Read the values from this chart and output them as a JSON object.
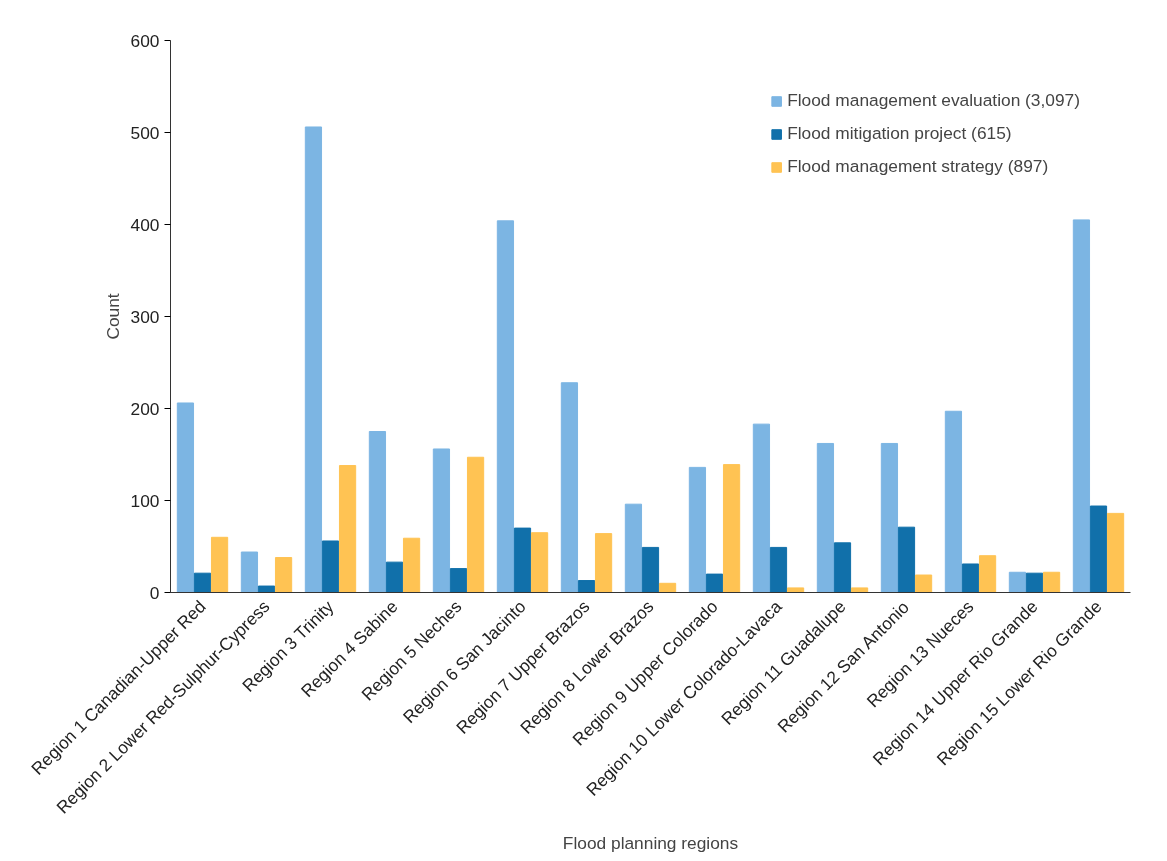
{
  "chart_data": {
    "type": "bar",
    "xlabel": "Flood planning regions",
    "ylabel": "Count",
    "categories": [
      "Region 1 Canadian-Upper Red",
      "Region 2 Lower Red-Sulphur-Cypress",
      "Region 3 Trinity",
      "Region 4 Sabine",
      "Region 5 Neches",
      "Region 6 San Jacinto",
      "Region 7 Upper Brazos",
      "Region 8 Lower Brazos",
      "Region 9 Upper Colorado",
      "Region 10 Lower Colorado-Lavaca",
      "Region 11 Guadalupe",
      "Region 12 San Antonio",
      "Region 13 Nueces",
      "Region 14 Upper Rio Grande",
      "Region 15 Lower Rio Grande"
    ],
    "series": [
      {
        "name": "Flood management evaluation (3,097)",
        "color": "#7cb5e3",
        "values": [
          206,
          44,
          506,
          175,
          156,
          404,
          228,
          96,
          136,
          183,
          162,
          162,
          197,
          22,
          405
        ]
      },
      {
        "name": "Flood mitigation project (615)",
        "color": "#1170aa",
        "values": [
          21,
          7,
          56,
          33,
          26,
          70,
          13,
          49,
          20,
          49,
          54,
          71,
          31,
          21,
          94
        ]
      },
      {
        "name": "Flood management strategy (897)",
        "color": "#ffc353",
        "values": [
          60,
          38,
          138,
          59,
          147,
          65,
          64,
          10,
          139,
          5,
          5,
          19,
          40,
          22,
          86
        ]
      }
    ],
    "ylim": [
      0,
      600
    ],
    "yticks": [
      0,
      100,
      200,
      300,
      400,
      500,
      600
    ],
    "grid": false,
    "legend": "top right"
  }
}
